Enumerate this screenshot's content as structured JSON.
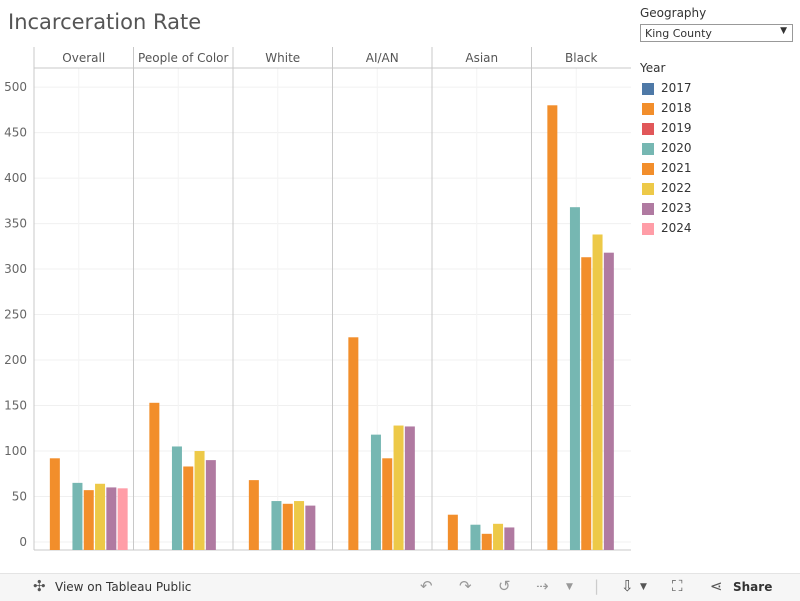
{
  "page": {
    "title": "Incarceration Rate"
  },
  "geography": {
    "label": "Geography",
    "selected": "King County"
  },
  "legend": {
    "title": "Year",
    "items": [
      {
        "label": "2017",
        "color": "#4e79a7"
      },
      {
        "label": "2018",
        "color": "#f28e2b"
      },
      {
        "label": "2019",
        "color": "#e15759"
      },
      {
        "label": "2020",
        "color": "#76b7b2"
      },
      {
        "label": "2021",
        "color": "#f28e2b"
      },
      {
        "label": "2022",
        "color": "#edc948"
      },
      {
        "label": "2023",
        "color": "#b07aa1"
      },
      {
        "label": "2024",
        "color": "#ff9da7"
      }
    ]
  },
  "toolbar": {
    "view_label": "View on Tableau Public",
    "share_label": "Share",
    "view_icon": "tableau-icon",
    "undo_icon": "undo-icon",
    "redo_icon": "redo-icon",
    "revert_icon": "revert-icon",
    "refresh_icon": "refresh-icon",
    "download_icon": "download-icon",
    "fullscreen_icon": "fullscreen-icon",
    "share_icon": "share-icon"
  },
  "chart_data": {
    "type": "bar",
    "title": "Incarceration Rate",
    "xlabel": "",
    "ylabel": "",
    "ylim": [
      0,
      510
    ],
    "yticks": [
      0,
      50,
      100,
      150,
      200,
      250,
      300,
      350,
      400,
      450,
      500
    ],
    "grid": true,
    "legend_position": "right",
    "categories": [
      "Overall",
      "People of Color",
      "White",
      "AI/AN",
      "Asian",
      "Black"
    ],
    "series": [
      {
        "name": "2017",
        "color": "#4e79a7",
        "values": [
          null,
          null,
          null,
          null,
          null,
          null
        ]
      },
      {
        "name": "2018",
        "color": "#f28e2b",
        "values": [
          92,
          153,
          68,
          225,
          30,
          480
        ]
      },
      {
        "name": "2019",
        "color": "#e15759",
        "values": [
          null,
          null,
          null,
          null,
          null,
          null
        ]
      },
      {
        "name": "2020",
        "color": "#76b7b2",
        "values": [
          65,
          105,
          45,
          118,
          19,
          368
        ]
      },
      {
        "name": "2021",
        "color": "#f28e2b",
        "values": [
          57,
          83,
          42,
          92,
          9,
          313
        ]
      },
      {
        "name": "2022",
        "color": "#edc948",
        "values": [
          64,
          100,
          45,
          128,
          20,
          338
        ]
      },
      {
        "name": "2023",
        "color": "#b07aa1",
        "values": [
          60,
          90,
          40,
          127,
          16,
          318
        ]
      },
      {
        "name": "2024",
        "color": "#ff9da7",
        "values": [
          59,
          null,
          null,
          null,
          null,
          null
        ]
      }
    ]
  }
}
